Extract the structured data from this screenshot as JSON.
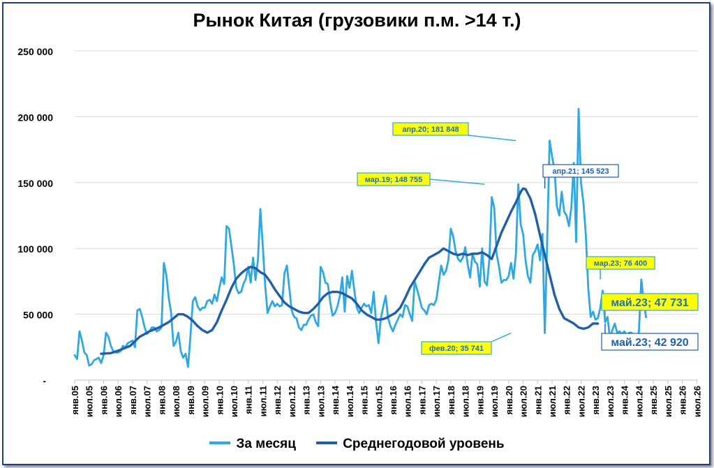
{
  "chart_data": {
    "type": "line",
    "title": "Рынок Китая (грузовики п.м. >14 т.)",
    "xlabel": "",
    "ylabel": "",
    "ylim": [
      0,
      250000
    ],
    "y_tick_labels": [
      "-",
      "50 000",
      "100 000",
      "150 000",
      "200 000",
      "250 000"
    ],
    "x_tick_labels": [
      "янв.05",
      "июл.05",
      "янв.06",
      "июл.06",
      "янв.07",
      "июл.07",
      "янв.08",
      "июл.08",
      "янв.09",
      "июл.09",
      "янв.10",
      "июл.10",
      "янв.11",
      "июл.11",
      "янв.12",
      "июл.12",
      "янв.13",
      "июл.13",
      "янв.14",
      "июл.14",
      "янв.15",
      "июл.15",
      "янв.16",
      "июл.16",
      "янв.17",
      "июл.17",
      "янв.18",
      "июл.18",
      "янв.19",
      "июл.19",
      "янв.20",
      "июл.20",
      "янв.21",
      "июл.21",
      "янв.22",
      "июл.22",
      "янв.23",
      "июл.23",
      "янв.24",
      "июл.24",
      "янв.25",
      "июл.25",
      "янв.26",
      "июл.26"
    ],
    "x_tick_start": "2005-01",
    "grid": "horizontal",
    "legend_position": "bottom",
    "series": [
      {
        "name": "За месяц",
        "color": "#2ea8e0",
        "x_start": "2005-01",
        "values": [
          19000,
          16000,
          37000,
          30000,
          21000,
          19000,
          11000,
          12000,
          15000,
          16000,
          17000,
          13000,
          19000,
          36000,
          33000,
          26000,
          22000,
          21000,
          21000,
          22000,
          26000,
          25000,
          28000,
          29000,
          30000,
          25000,
          53000,
          54000,
          48000,
          40000,
          35000,
          37000,
          40000,
          40000,
          37000,
          38000,
          40000,
          89000,
          80000,
          63000,
          51000,
          26000,
          29000,
          36000,
          22000,
          17000,
          20000,
          10000,
          33000,
          60000,
          63000,
          56000,
          53000,
          55000,
          55000,
          60000,
          61000,
          58000,
          65000,
          60000,
          70000,
          78000,
          73000,
          117000,
          115000,
          102000,
          88000,
          70000,
          66000,
          67000,
          73000,
          77000,
          86000,
          74000,
          93000,
          76000,
          91000,
          130000,
          102000,
          72000,
          51000,
          56000,
          60000,
          56000,
          58000,
          56000,
          57000,
          81000,
          87000,
          70000,
          53000,
          48000,
          47000,
          40000,
          38000,
          42000,
          42000,
          46000,
          49000,
          50000,
          44000,
          41000,
          86000,
          82000,
          74000,
          73000,
          59000,
          49000,
          51000,
          56000,
          64000,
          78000,
          52000,
          79000,
          70000,
          83000,
          68000,
          55000,
          51000,
          55000,
          58000,
          56000,
          57000,
          51000,
          67000,
          44000,
          28000,
          47000,
          56000,
          64000,
          47000,
          41000,
          37000,
          42000,
          46000,
          50000,
          48000,
          57000,
          56000,
          50000,
          45000,
          75000,
          69000,
          62000,
          55000,
          53000,
          50000,
          57000,
          58000,
          57000,
          61000,
          74000,
          87000,
          80000,
          83000,
          91000,
          115000,
          109000,
          98000,
          92000,
          90000,
          93000,
          101000,
          88000,
          78000,
          96000,
          90000,
          88000,
          71000,
          100000,
          75000,
          72000,
          92000,
          139000,
          131000,
          96000,
          86000,
          74000,
          76000,
          76000,
          79000,
          89000,
          77000,
          96000,
          148755,
          118000,
          111000,
          91000,
          79000,
          74000,
          95000,
          98000,
          103000,
          91000,
          111000,
          35741,
          108000,
          181848,
          170000,
          160000,
          132000,
          125000,
          143000,
          128000,
          125000,
          117000,
          131000,
          165000,
          105000,
          206000,
          150000,
          135000,
          110000,
          70000,
          48000,
          52000,
          46000,
          47000,
          55000,
          68000,
          44000,
          48000,
          32000,
          38000,
          43000,
          36000,
          37000,
          35000,
          37000,
          34000,
          36000,
          36000,
          33000,
          28000,
          37000,
          76400,
          60000,
          47731
        ]
      },
      {
        "name": "Среднегодовой уровень",
        "color": "#1f5fa8",
        "x_start": "2005-12",
        "values": [
          [
            0,
            20000
          ],
          [
            4,
            20500
          ],
          [
            8,
            23000
          ],
          [
            12,
            26000
          ],
          [
            16,
            33000
          ],
          [
            20,
            37000
          ],
          [
            24,
            40000
          ],
          [
            28,
            44000
          ],
          [
            30,
            47000
          ],
          [
            32,
            50000
          ],
          [
            34,
            50000
          ],
          [
            36,
            48000
          ],
          [
            38,
            45000
          ],
          [
            40,
            41000
          ],
          [
            42,
            38000
          ],
          [
            44,
            36000
          ],
          [
            46,
            38000
          ],
          [
            48,
            44000
          ],
          [
            50,
            53000
          ],
          [
            52,
            61000
          ],
          [
            54,
            70000
          ],
          [
            56,
            77000
          ],
          [
            58,
            81000
          ],
          [
            60,
            84000
          ],
          [
            62,
            86000
          ],
          [
            64,
            85000
          ],
          [
            66,
            82000
          ],
          [
            68,
            80000
          ],
          [
            70,
            75000
          ],
          [
            72,
            69000
          ],
          [
            74,
            64000
          ],
          [
            76,
            59000
          ],
          [
            78,
            56000
          ],
          [
            80,
            54000
          ],
          [
            82,
            52000
          ],
          [
            84,
            51000
          ],
          [
            86,
            51000
          ],
          [
            88,
            54000
          ],
          [
            90,
            58000
          ],
          [
            92,
            63000
          ],
          [
            94,
            66000
          ],
          [
            96,
            67000
          ],
          [
            98,
            67000
          ],
          [
            100,
            66000
          ],
          [
            102,
            64000
          ],
          [
            104,
            62000
          ],
          [
            106,
            58000
          ],
          [
            108,
            53000
          ],
          [
            110,
            50000
          ],
          [
            112,
            48000
          ],
          [
            114,
            46000
          ],
          [
            116,
            46000
          ],
          [
            118,
            47000
          ],
          [
            120,
            49000
          ],
          [
            122,
            51000
          ],
          [
            124,
            55000
          ],
          [
            126,
            62000
          ],
          [
            128,
            70000
          ],
          [
            130,
            76000
          ],
          [
            132,
            82000
          ],
          [
            134,
            88000
          ],
          [
            136,
            93000
          ],
          [
            138,
            95000
          ],
          [
            140,
            97000
          ],
          [
            142,
            100000
          ],
          [
            144,
            98000
          ],
          [
            146,
            96000
          ],
          [
            148,
            95000
          ],
          [
            150,
            96000
          ],
          [
            152,
            95000
          ],
          [
            154,
            96000
          ],
          [
            156,
            96000
          ],
          [
            158,
            97000
          ],
          [
            160,
            95000
          ],
          [
            162,
            92000
          ],
          [
            164,
            102000
          ],
          [
            166,
            112000
          ],
          [
            168,
            120000
          ],
          [
            170,
            128000
          ],
          [
            172,
            135000
          ],
          [
            174,
            143000
          ],
          [
            175,
            145523
          ],
          [
            176,
            145000
          ],
          [
            178,
            138000
          ],
          [
            180,
            126000
          ],
          [
            182,
            110000
          ],
          [
            184,
            95000
          ],
          [
            186,
            80000
          ],
          [
            188,
            65000
          ],
          [
            190,
            54000
          ],
          [
            192,
            47000
          ],
          [
            194,
            45000
          ],
          [
            196,
            43000
          ],
          [
            198,
            40000
          ],
          [
            200,
            39000
          ],
          [
            202,
            40000
          ],
          [
            204,
            43000
          ],
          [
            206,
            42920
          ]
        ]
      }
    ],
    "annotations": [
      {
        "text": "мар.19; 148 755",
        "style": "yellow",
        "at": [
          170,
          148755
        ]
      },
      {
        "text": "апр.20;  181 848",
        "style": "yellow",
        "at": [
          183,
          181848
        ]
      },
      {
        "text": "апр.21;  145 523",
        "style": "white",
        "at": [
          195,
          145523
        ]
      },
      {
        "text": "фев.20; 35 741",
        "style": "yellow",
        "at": [
          181,
          35741
        ]
      },
      {
        "text": "мар.23; 76 400",
        "style": "yellow",
        "at": [
          218,
          76400
        ]
      },
      {
        "text": "май.23;  47 731",
        "style": "yellow-big",
        "at": [
          220,
          47731
        ]
      },
      {
        "text": "май.23;  42 920",
        "style": "white-big",
        "at": [
          220,
          42920
        ]
      }
    ]
  },
  "legend": {
    "monthly_label": "За месяц",
    "average_label": "Среднегодовой уровень"
  }
}
